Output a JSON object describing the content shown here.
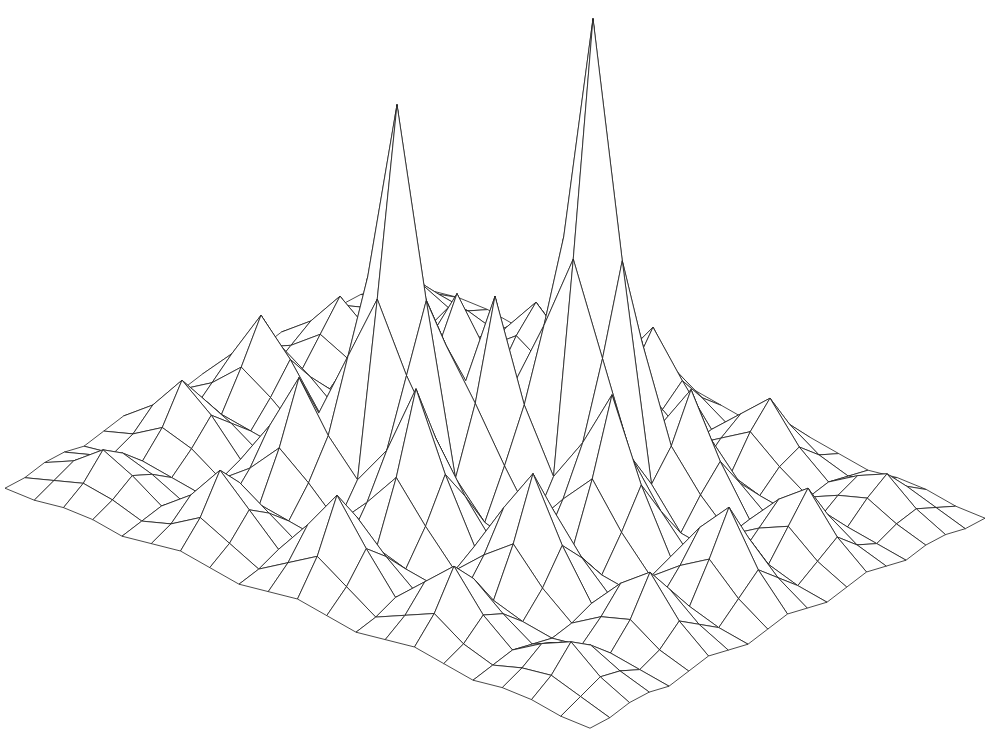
{
  "chart_data": {
    "type": "surface",
    "tick_labels": false,
    "xlim": [
      0,
      20
    ],
    "ylim": [
      0,
      20
    ],
    "zlim": [
      0,
      120
    ],
    "x": [
      0,
      1,
      2,
      3,
      4,
      5,
      6,
      7,
      8,
      9,
      10,
      11,
      12,
      13,
      14,
      15,
      16,
      17,
      18,
      19,
      20
    ],
    "y": [
      0,
      1,
      2,
      3,
      4,
      5,
      6,
      7,
      8,
      9,
      10,
      11,
      12,
      13,
      14,
      15,
      16,
      17,
      18,
      19,
      20
    ],
    "z": [
      [
        3,
        3,
        4,
        4,
        3,
        4,
        5,
        4,
        3,
        4,
        5,
        4,
        3,
        4,
        5,
        4,
        3,
        4,
        4,
        3,
        3
      ],
      [
        3,
        5,
        7,
        6,
        4,
        6,
        10,
        7,
        4,
        8,
        12,
        8,
        4,
        7,
        10,
        6,
        4,
        6,
        7,
        5,
        3
      ],
      [
        4,
        7,
        12,
        9,
        5,
        10,
        18,
        12,
        6,
        14,
        23,
        14,
        6,
        12,
        18,
        10,
        5,
        9,
        12,
        7,
        4
      ],
      [
        4,
        6,
        9,
        7,
        4,
        8,
        13,
        9,
        5,
        10,
        16,
        10,
        5,
        9,
        13,
        8,
        4,
        7,
        9,
        6,
        4
      ],
      [
        3,
        4,
        5,
        4,
        3,
        4,
        6,
        5,
        4,
        5,
        7,
        5,
        4,
        5,
        6,
        4,
        3,
        4,
        5,
        4,
        3
      ],
      [
        4,
        6,
        10,
        8,
        4,
        9,
        16,
        11,
        5,
        12,
        20,
        12,
        5,
        11,
        16,
        9,
        4,
        8,
        10,
        6,
        4
      ],
      [
        5,
        10,
        18,
        13,
        6,
        16,
        29,
        19,
        8,
        21,
        37,
        21,
        13,
        19,
        29,
        16,
        6,
        13,
        18,
        10,
        5
      ],
      [
        4,
        7,
        12,
        9,
        5,
        11,
        19,
        13,
        6,
        14,
        24,
        40,
        59,
        39,
        19,
        11,
        5,
        9,
        12,
        7,
        4
      ],
      [
        3,
        4,
        6,
        5,
        4,
        5,
        8,
        6,
        4,
        6,
        14,
        59,
        109,
        59,
        13,
        5,
        4,
        5,
        6,
        4,
        3
      ],
      [
        4,
        8,
        14,
        10,
        5,
        12,
        21,
        14,
        6,
        16,
        27,
        42,
        59,
        40,
        21,
        12,
        5,
        10,
        14,
        8,
        4
      ],
      [
        5,
        12,
        23,
        16,
        7,
        20,
        37,
        24,
        13,
        27,
        48,
        27,
        14,
        24,
        37,
        20,
        7,
        16,
        23,
        12,
        5
      ],
      [
        4,
        8,
        14,
        10,
        5,
        12,
        21,
        35,
        49,
        37,
        27,
        16,
        6,
        14,
        21,
        12,
        5,
        10,
        14,
        8,
        4
      ],
      [
        3,
        4,
        6,
        5,
        4,
        5,
        12,
        49,
        89,
        49,
        13,
        6,
        4,
        6,
        8,
        5,
        4,
        5,
        6,
        4,
        3
      ],
      [
        4,
        7,
        12,
        9,
        5,
        11,
        19,
        34,
        49,
        35,
        24,
        14,
        6,
        13,
        19,
        11,
        5,
        9,
        12,
        7,
        4
      ],
      [
        5,
        10,
        18,
        13,
        6,
        16,
        29,
        19,
        12,
        21,
        37,
        21,
        8,
        19,
        29,
        16,
        6,
        13,
        18,
        10,
        5
      ],
      [
        4,
        6,
        10,
        8,
        4,
        9,
        16,
        11,
        5,
        12,
        20,
        12,
        5,
        11,
        16,
        9,
        4,
        8,
        10,
        6,
        4
      ],
      [
        3,
        4,
        5,
        4,
        3,
        4,
        6,
        5,
        4,
        5,
        7,
        5,
        4,
        5,
        6,
        4,
        3,
        4,
        5,
        4,
        3
      ],
      [
        4,
        6,
        9,
        7,
        4,
        8,
        13,
        9,
        5,
        10,
        16,
        10,
        5,
        9,
        13,
        8,
        4,
        7,
        9,
        6,
        4
      ],
      [
        4,
        7,
        12,
        9,
        5,
        10,
        18,
        12,
        6,
        14,
        23,
        14,
        6,
        12,
        18,
        10,
        5,
        9,
        12,
        7,
        4
      ],
      [
        3,
        5,
        7,
        6,
        4,
        6,
        10,
        7,
        4,
        8,
        12,
        8,
        4,
        7,
        10,
        6,
        4,
        6,
        7,
        5,
        3
      ],
      [
        3,
        3,
        4,
        4,
        3,
        4,
        5,
        4,
        3,
        4,
        5,
        4,
        3,
        4,
        5,
        4,
        3,
        4,
        4,
        3,
        3
      ]
    ]
  }
}
